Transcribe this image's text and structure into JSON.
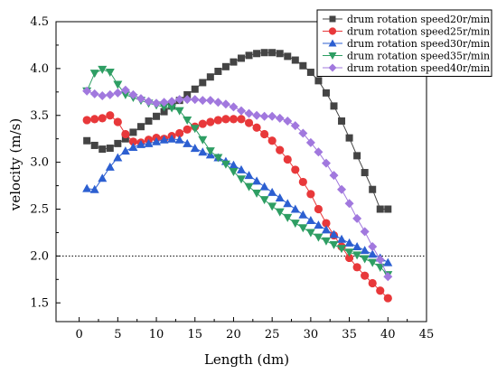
{
  "chart_data": {
    "type": "line",
    "title": "",
    "xlabel": "Length (dm)",
    "ylabel": "velocity (m/s)",
    "xlim": [
      -3,
      45
    ],
    "ylim": [
      1.3,
      4.5
    ],
    "x_ticks": [
      "0",
      "5",
      "10",
      "15",
      "20",
      "25",
      "30",
      "35",
      "40",
      "45"
    ],
    "y_ticks": [
      "1.5",
      "2.0",
      "2.5",
      "3.0",
      "3.5",
      "4.0",
      "4.5"
    ],
    "reference_line": {
      "y": 2.0,
      "style": "dotted"
    },
    "legend_position": "top-right",
    "grid": false,
    "x": [
      1,
      2,
      3,
      4,
      5,
      6,
      7,
      8,
      9,
      10,
      11,
      12,
      13,
      14,
      15,
      16,
      17,
      18,
      19,
      20,
      21,
      22,
      23,
      24,
      25,
      26,
      27,
      28,
      29,
      30,
      31,
      32,
      33,
      34,
      35,
      36,
      37,
      38,
      39,
      40
    ],
    "series": [
      {
        "name": "drum rotation speed20r/min",
        "color": "#444444",
        "marker": "square",
        "values": [
          3.23,
          3.18,
          3.14,
          3.15,
          3.2,
          3.25,
          3.32,
          3.38,
          3.44,
          3.49,
          3.54,
          3.6,
          3.66,
          3.72,
          3.78,
          3.85,
          3.91,
          3.97,
          4.02,
          4.07,
          4.11,
          4.14,
          4.16,
          4.17,
          4.17,
          4.16,
          4.13,
          4.09,
          4.03,
          3.96,
          3.87,
          3.74,
          3.6,
          3.44,
          3.26,
          3.07,
          2.89,
          2.71,
          2.5,
          2.5
        ]
      },
      {
        "name": "drum rotation speed25r/min",
        "color": "#e8383a",
        "marker": "circle",
        "values": [
          3.45,
          3.46,
          3.47,
          3.5,
          3.43,
          3.3,
          3.22,
          3.21,
          3.24,
          3.26,
          3.25,
          3.28,
          3.31,
          3.35,
          3.38,
          3.41,
          3.43,
          3.45,
          3.46,
          3.46,
          3.46,
          3.42,
          3.37,
          3.3,
          3.23,
          3.13,
          3.03,
          2.92,
          2.79,
          2.66,
          2.5,
          2.35,
          2.22,
          2.1,
          1.98,
          1.88,
          1.79,
          1.71,
          1.63,
          1.55
        ]
      },
      {
        "name": "drum rotation speed30r/min",
        "color": "#2c5fd1",
        "marker": "triangle-up",
        "values": [
          2.72,
          2.71,
          2.83,
          2.95,
          3.05,
          3.12,
          3.16,
          3.19,
          3.2,
          3.22,
          3.24,
          3.25,
          3.24,
          3.2,
          3.15,
          3.11,
          3.08,
          3.05,
          3.01,
          2.97,
          2.92,
          2.86,
          2.8,
          2.74,
          2.68,
          2.62,
          2.56,
          2.5,
          2.44,
          2.38,
          2.33,
          2.28,
          2.23,
          2.18,
          2.14,
          2.1,
          2.06,
          2.02,
          1.98,
          1.93
        ]
      },
      {
        "name": "drum rotation speed35r/min",
        "color": "#2e9e63",
        "marker": "triangle-down",
        "values": [
          3.76,
          3.95,
          3.99,
          3.96,
          3.83,
          3.72,
          3.69,
          3.66,
          3.63,
          3.61,
          3.59,
          3.58,
          3.55,
          3.45,
          3.36,
          3.24,
          3.12,
          3.05,
          2.98,
          2.9,
          2.82,
          2.74,
          2.67,
          2.6,
          2.53,
          2.47,
          2.41,
          2.35,
          2.3,
          2.25,
          2.2,
          2.16,
          2.12,
          2.08,
          2.04,
          2.01,
          1.97,
          1.93,
          1.88,
          1.8
        ]
      },
      {
        "name": "drum rotation speed40r/min",
        "color": "#a178de",
        "marker": "diamond",
        "values": [
          3.76,
          3.73,
          3.71,
          3.72,
          3.74,
          3.77,
          3.72,
          3.68,
          3.65,
          3.63,
          3.64,
          3.65,
          3.67,
          3.67,
          3.67,
          3.66,
          3.66,
          3.64,
          3.62,
          3.59,
          3.55,
          3.52,
          3.5,
          3.49,
          3.49,
          3.47,
          3.44,
          3.39,
          3.31,
          3.21,
          3.11,
          2.99,
          2.86,
          2.71,
          2.56,
          2.4,
          2.26,
          2.1,
          1.96,
          1.78
        ]
      }
    ]
  }
}
